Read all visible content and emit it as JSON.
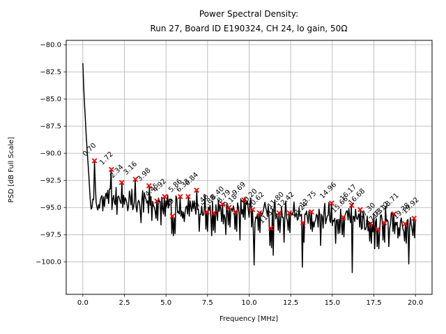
{
  "figure": {
    "title_line1": "Power Spectral Density:",
    "title_line2": "Run 27, Board ID E190324, CH 24, lo gain, 50Ω"
  },
  "chart_data": {
    "type": "line",
    "title": "Power Spectral Density:\nRun 27, Board ID E190324, CH 24, lo gain, 50Ω",
    "xlabel": "Frequency [MHz]",
    "ylabel": "PSD [dB Full Scale]",
    "xlim": [
      -1,
      21
    ],
    "ylim": [
      -103.0,
      -79.6
    ],
    "xticks": [
      0,
      2.5,
      5,
      7.5,
      10,
      12.5,
      15,
      17.5,
      20
    ],
    "xtick_labels": [
      "0.0",
      "2.5",
      "5.0",
      "7.5",
      "10.0",
      "12.5",
      "15.0",
      "17.5",
      "20.0"
    ],
    "yticks": [
      -80,
      -82.5,
      -85,
      -87.5,
      -90,
      -92.5,
      -95,
      -97.5,
      -100
    ],
    "ytick_labels": [
      "−80.0",
      "−82.5",
      "−85.0",
      "−87.5",
      "−90.0",
      "−92.5",
      "−95.0",
      "−97.5",
      "−100.0"
    ],
    "grid": true,
    "legend": false,
    "line_color": "#000000",
    "marker_color": "#ff0000",
    "grid_color": "#b0b0b0",
    "background_color": "#ffffff",
    "marker_style": "x",
    "start_spike": {
      "freq": 0.0,
      "psd_db": -81.7
    },
    "peaks": [
      {
        "f": 0.7,
        "db": -90.7,
        "label": "0.70"
      },
      {
        "f": 1.72,
        "db": -91.5,
        "label": "1.72"
      },
      {
        "f": 2.34,
        "db": -92.7,
        "label": "2.34"
      },
      {
        "f": 3.16,
        "db": -92.4,
        "label": "3.16"
      },
      {
        "f": 3.98,
        "db": -93.0,
        "label": "3.98"
      },
      {
        "f": 4.45,
        "db": -94.4,
        "label": "4.45"
      },
      {
        "f": 4.92,
        "db": -94.0,
        "label": "4.92"
      },
      {
        "f": 5.39,
        "db": -95.8,
        "label": "5.39"
      },
      {
        "f": 5.86,
        "db": -94.0,
        "label": "5.86"
      },
      {
        "f": 6.33,
        "db": -94.0,
        "label": "6.33"
      },
      {
        "f": 6.84,
        "db": -93.4,
        "label": "6.84"
      },
      {
        "f": 7.46,
        "db": -95.4,
        "label": "7.46"
      },
      {
        "f": 7.88,
        "db": -95.5,
        "label": "7.88"
      },
      {
        "f": 8.4,
        "db": -94.7,
        "label": "8.40"
      },
      {
        "f": 8.79,
        "db": -95.0,
        "label": "8.79"
      },
      {
        "f": 9.18,
        "db": -95.4,
        "label": "9.18"
      },
      {
        "f": 9.69,
        "db": -94.3,
        "label": "9.69"
      },
      {
        "f": 10.2,
        "db": -95.2,
        "label": "10.20"
      },
      {
        "f": 10.62,
        "db": -95.5,
        "label": "10.62"
      },
      {
        "f": 11.31,
        "db": -96.9,
        "label": "11.31"
      },
      {
        "f": 11.8,
        "db": -95.5,
        "label": "11.80"
      },
      {
        "f": 12.42,
        "db": -95.5,
        "label": "12.42"
      },
      {
        "f": 13.24,
        "db": -96.4,
        "label": "13.24"
      },
      {
        "f": 13.75,
        "db": -95.4,
        "label": "13.75"
      },
      {
        "f": 14.96,
        "db": -94.6,
        "label": "14.96"
      },
      {
        "f": 15.66,
        "db": -95.9,
        "label": "15.66"
      },
      {
        "f": 16.17,
        "db": -94.8,
        "label": "16.17"
      },
      {
        "f": 16.68,
        "db": -95.2,
        "label": "16.68"
      },
      {
        "f": 17.3,
        "db": -96.5,
        "label": "17.30"
      },
      {
        "f": 17.73,
        "db": -97.0,
        "label": "17.73"
      },
      {
        "f": 18.12,
        "db": -96.4,
        "label": "18.12"
      },
      {
        "f": 18.71,
        "db": -95.6,
        "label": "18.71"
      },
      {
        "f": 19.38,
        "db": -96.5,
        "label": "19.38"
      },
      {
        "f": 19.92,
        "db": -96.0,
        "label": "19.92"
      }
    ],
    "dips": [
      [
        1.3,
        -94.8
      ],
      [
        2.05,
        -95.2
      ],
      [
        2.72,
        -95.3
      ],
      [
        3.52,
        -96.4
      ],
      [
        4.15,
        -96.2
      ],
      [
        4.7,
        -96.6
      ],
      [
        5.55,
        -97.4
      ],
      [
        6.1,
        -96.3
      ],
      [
        7.0,
        -97.2
      ],
      [
        7.75,
        -97.6
      ],
      [
        8.6,
        -97.5
      ],
      [
        9.45,
        -98.0
      ],
      [
        10.32,
        -100.3
      ],
      [
        11.45,
        -99.4
      ],
      [
        12.1,
        -98.2
      ],
      [
        13.18,
        -100.5
      ],
      [
        14.3,
        -98.5
      ],
      [
        15.2,
        -98.3
      ],
      [
        16.22,
        -101.0
      ],
      [
        17.55,
        -98.8
      ],
      [
        18.4,
        -98.6
      ],
      [
        19.62,
        -100.2
      ]
    ],
    "noise_floor": {
      "start_db": -94.0,
      "slope_db_per_mhz": -0.13,
      "jitter_db": 1.5
    }
  }
}
